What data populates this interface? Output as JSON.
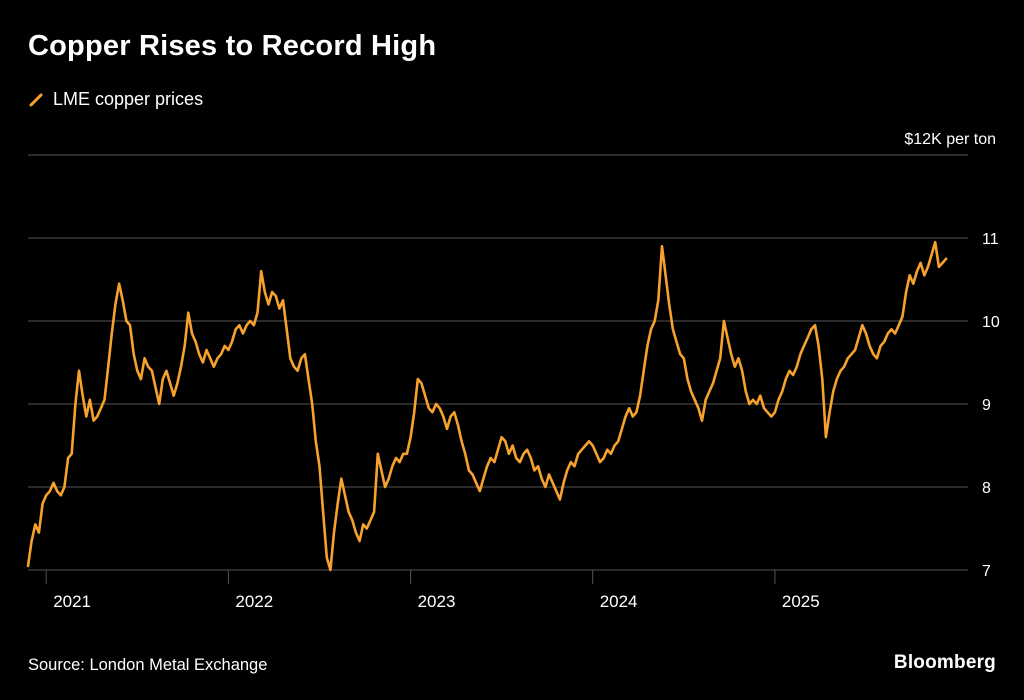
{
  "header": {
    "title": "Copper Rises to Record High",
    "legend_label": "LME copper prices"
  },
  "footer": {
    "source": "Source: London Metal Exchange",
    "brand": "Bloomberg"
  },
  "colors": {
    "background": "#000000",
    "line": "#F7A22C",
    "grid": "#545454",
    "text": "#FFFFFF"
  },
  "chart_data": {
    "type": "line",
    "title": "Copper Rises to Record High",
    "series_name": "LME copper prices",
    "unit": "$K per ton",
    "y_top_label": "$12K per ton",
    "ylim": [
      7,
      12
    ],
    "y_ticks": [
      7,
      8,
      9,
      10,
      11
    ],
    "x_ticks": [
      2021,
      2022,
      2023,
      2024,
      2025
    ],
    "xlim": [
      2020.9,
      2026.06
    ],
    "grid": true,
    "legend_position": "top-left",
    "source": "London Metal Exchange",
    "points": [
      [
        2020.9,
        7.05
      ],
      [
        2020.92,
        7.35
      ],
      [
        2020.94,
        7.55
      ],
      [
        2020.96,
        7.45
      ],
      [
        2020.98,
        7.8
      ],
      [
        2021.0,
        7.9
      ],
      [
        2021.02,
        7.95
      ],
      [
        2021.04,
        8.05
      ],
      [
        2021.06,
        7.95
      ],
      [
        2021.08,
        7.9
      ],
      [
        2021.1,
        8.0
      ],
      [
        2021.12,
        8.35
      ],
      [
        2021.14,
        8.4
      ],
      [
        2021.16,
        9.0
      ],
      [
        2021.18,
        9.4
      ],
      [
        2021.2,
        9.1
      ],
      [
        2021.22,
        8.85
      ],
      [
        2021.24,
        9.05
      ],
      [
        2021.26,
        8.8
      ],
      [
        2021.28,
        8.85
      ],
      [
        2021.3,
        8.95
      ],
      [
        2021.32,
        9.05
      ],
      [
        2021.34,
        9.45
      ],
      [
        2021.36,
        9.85
      ],
      [
        2021.38,
        10.2
      ],
      [
        2021.4,
        10.45
      ],
      [
        2021.42,
        10.25
      ],
      [
        2021.44,
        10.0
      ],
      [
        2021.46,
        9.95
      ],
      [
        2021.48,
        9.6
      ],
      [
        2021.5,
        9.4
      ],
      [
        2021.52,
        9.3
      ],
      [
        2021.54,
        9.55
      ],
      [
        2021.56,
        9.45
      ],
      [
        2021.58,
        9.4
      ],
      [
        2021.6,
        9.2
      ],
      [
        2021.62,
        9.0
      ],
      [
        2021.64,
        9.3
      ],
      [
        2021.66,
        9.4
      ],
      [
        2021.68,
        9.25
      ],
      [
        2021.7,
        9.1
      ],
      [
        2021.72,
        9.25
      ],
      [
        2021.74,
        9.45
      ],
      [
        2021.76,
        9.7
      ],
      [
        2021.78,
        10.1
      ],
      [
        2021.8,
        9.85
      ],
      [
        2021.82,
        9.75
      ],
      [
        2021.84,
        9.6
      ],
      [
        2021.86,
        9.5
      ],
      [
        2021.88,
        9.65
      ],
      [
        2021.9,
        9.55
      ],
      [
        2021.92,
        9.45
      ],
      [
        2021.94,
        9.55
      ],
      [
        2021.96,
        9.6
      ],
      [
        2021.98,
        9.7
      ],
      [
        2022.0,
        9.65
      ],
      [
        2022.02,
        9.75
      ],
      [
        2022.04,
        9.9
      ],
      [
        2022.06,
        9.95
      ],
      [
        2022.08,
        9.85
      ],
      [
        2022.1,
        9.95
      ],
      [
        2022.12,
        10.0
      ],
      [
        2022.14,
        9.95
      ],
      [
        2022.16,
        10.1
      ],
      [
        2022.18,
        10.6
      ],
      [
        2022.2,
        10.35
      ],
      [
        2022.22,
        10.2
      ],
      [
        2022.24,
        10.35
      ],
      [
        2022.26,
        10.3
      ],
      [
        2022.28,
        10.15
      ],
      [
        2022.3,
        10.25
      ],
      [
        2022.32,
        9.9
      ],
      [
        2022.34,
        9.55
      ],
      [
        2022.36,
        9.45
      ],
      [
        2022.38,
        9.4
      ],
      [
        2022.4,
        9.55
      ],
      [
        2022.42,
        9.6
      ],
      [
        2022.44,
        9.3
      ],
      [
        2022.46,
        9.0
      ],
      [
        2022.48,
        8.55
      ],
      [
        2022.5,
        8.25
      ],
      [
        2022.52,
        7.7
      ],
      [
        2022.54,
        7.15
      ],
      [
        2022.56,
        7.0
      ],
      [
        2022.58,
        7.45
      ],
      [
        2022.6,
        7.8
      ],
      [
        2022.62,
        8.1
      ],
      [
        2022.64,
        7.9
      ],
      [
        2022.66,
        7.7
      ],
      [
        2022.68,
        7.6
      ],
      [
        2022.7,
        7.45
      ],
      [
        2022.72,
        7.35
      ],
      [
        2022.74,
        7.55
      ],
      [
        2022.76,
        7.5
      ],
      [
        2022.78,
        7.6
      ],
      [
        2022.8,
        7.7
      ],
      [
        2022.82,
        8.4
      ],
      [
        2022.84,
        8.2
      ],
      [
        2022.86,
        8.0
      ],
      [
        2022.88,
        8.1
      ],
      [
        2022.9,
        8.25
      ],
      [
        2022.92,
        8.35
      ],
      [
        2022.94,
        8.3
      ],
      [
        2022.96,
        8.4
      ],
      [
        2022.98,
        8.4
      ],
      [
        2023.0,
        8.6
      ],
      [
        2023.02,
        8.9
      ],
      [
        2023.04,
        9.3
      ],
      [
        2023.06,
        9.25
      ],
      [
        2023.08,
        9.1
      ],
      [
        2023.1,
        8.95
      ],
      [
        2023.12,
        8.9
      ],
      [
        2023.14,
        9.0
      ],
      [
        2023.16,
        8.95
      ],
      [
        2023.18,
        8.85
      ],
      [
        2023.2,
        8.7
      ],
      [
        2023.22,
        8.85
      ],
      [
        2023.24,
        8.9
      ],
      [
        2023.26,
        8.75
      ],
      [
        2023.28,
        8.55
      ],
      [
        2023.3,
        8.4
      ],
      [
        2023.32,
        8.2
      ],
      [
        2023.34,
        8.15
      ],
      [
        2023.36,
        8.05
      ],
      [
        2023.38,
        7.95
      ],
      [
        2023.4,
        8.1
      ],
      [
        2023.42,
        8.25
      ],
      [
        2023.44,
        8.35
      ],
      [
        2023.46,
        8.3
      ],
      [
        2023.48,
        8.45
      ],
      [
        2023.5,
        8.6
      ],
      [
        2023.52,
        8.55
      ],
      [
        2023.54,
        8.4
      ],
      [
        2023.56,
        8.5
      ],
      [
        2023.58,
        8.35
      ],
      [
        2023.6,
        8.3
      ],
      [
        2023.62,
        8.4
      ],
      [
        2023.64,
        8.45
      ],
      [
        2023.66,
        8.35
      ],
      [
        2023.68,
        8.2
      ],
      [
        2023.7,
        8.25
      ],
      [
        2023.72,
        8.1
      ],
      [
        2023.74,
        8.0
      ],
      [
        2023.76,
        8.15
      ],
      [
        2023.78,
        8.05
      ],
      [
        2023.8,
        7.95
      ],
      [
        2023.82,
        7.85
      ],
      [
        2023.84,
        8.05
      ],
      [
        2023.86,
        8.2
      ],
      [
        2023.88,
        8.3
      ],
      [
        2023.9,
        8.25
      ],
      [
        2023.92,
        8.4
      ],
      [
        2023.94,
        8.45
      ],
      [
        2023.96,
        8.5
      ],
      [
        2023.98,
        8.55
      ],
      [
        2024.0,
        8.5
      ],
      [
        2024.02,
        8.4
      ],
      [
        2024.04,
        8.3
      ],
      [
        2024.06,
        8.35
      ],
      [
        2024.08,
        8.45
      ],
      [
        2024.1,
        8.4
      ],
      [
        2024.12,
        8.5
      ],
      [
        2024.14,
        8.55
      ],
      [
        2024.16,
        8.7
      ],
      [
        2024.18,
        8.85
      ],
      [
        2024.2,
        8.95
      ],
      [
        2024.22,
        8.85
      ],
      [
        2024.24,
        8.9
      ],
      [
        2024.26,
        9.1
      ],
      [
        2024.28,
        9.4
      ],
      [
        2024.3,
        9.7
      ],
      [
        2024.32,
        9.9
      ],
      [
        2024.34,
        10.0
      ],
      [
        2024.36,
        10.25
      ],
      [
        2024.38,
        10.9
      ],
      [
        2024.4,
        10.55
      ],
      [
        2024.42,
        10.2
      ],
      [
        2024.44,
        9.9
      ],
      [
        2024.46,
        9.75
      ],
      [
        2024.48,
        9.6
      ],
      [
        2024.5,
        9.55
      ],
      [
        2024.52,
        9.3
      ],
      [
        2024.54,
        9.15
      ],
      [
        2024.56,
        9.05
      ],
      [
        2024.58,
        8.95
      ],
      [
        2024.6,
        8.8
      ],
      [
        2024.62,
        9.05
      ],
      [
        2024.64,
        9.15
      ],
      [
        2024.66,
        9.25
      ],
      [
        2024.68,
        9.4
      ],
      [
        2024.7,
        9.55
      ],
      [
        2024.72,
        10.0
      ],
      [
        2024.74,
        9.8
      ],
      [
        2024.76,
        9.6
      ],
      [
        2024.78,
        9.45
      ],
      [
        2024.8,
        9.55
      ],
      [
        2024.82,
        9.4
      ],
      [
        2024.84,
        9.15
      ],
      [
        2024.86,
        9.0
      ],
      [
        2024.88,
        9.05
      ],
      [
        2024.9,
        9.0
      ],
      [
        2024.92,
        9.1
      ],
      [
        2024.94,
        8.95
      ],
      [
        2024.96,
        8.9
      ],
      [
        2024.98,
        8.85
      ],
      [
        2025.0,
        8.9
      ],
      [
        2025.02,
        9.05
      ],
      [
        2025.04,
        9.15
      ],
      [
        2025.06,
        9.3
      ],
      [
        2025.08,
        9.4
      ],
      [
        2025.1,
        9.35
      ],
      [
        2025.12,
        9.45
      ],
      [
        2025.14,
        9.6
      ],
      [
        2025.16,
        9.7
      ],
      [
        2025.18,
        9.8
      ],
      [
        2025.2,
        9.9
      ],
      [
        2025.22,
        9.95
      ],
      [
        2025.24,
        9.7
      ],
      [
        2025.26,
        9.3
      ],
      [
        2025.28,
        8.6
      ],
      [
        2025.3,
        8.9
      ],
      [
        2025.32,
        9.15
      ],
      [
        2025.34,
        9.3
      ],
      [
        2025.36,
        9.4
      ],
      [
        2025.38,
        9.45
      ],
      [
        2025.4,
        9.55
      ],
      [
        2025.42,
        9.6
      ],
      [
        2025.44,
        9.65
      ],
      [
        2025.46,
        9.8
      ],
      [
        2025.48,
        9.95
      ],
      [
        2025.5,
        9.85
      ],
      [
        2025.52,
        9.7
      ],
      [
        2025.54,
        9.6
      ],
      [
        2025.56,
        9.55
      ],
      [
        2025.58,
        9.7
      ],
      [
        2025.6,
        9.75
      ],
      [
        2025.62,
        9.85
      ],
      [
        2025.64,
        9.9
      ],
      [
        2025.66,
        9.85
      ],
      [
        2025.68,
        9.95
      ],
      [
        2025.7,
        10.05
      ],
      [
        2025.72,
        10.35
      ],
      [
        2025.74,
        10.55
      ],
      [
        2025.76,
        10.45
      ],
      [
        2025.78,
        10.6
      ],
      [
        2025.8,
        10.7
      ],
      [
        2025.82,
        10.55
      ],
      [
        2025.84,
        10.65
      ],
      [
        2025.86,
        10.8
      ],
      [
        2025.88,
        10.95
      ],
      [
        2025.9,
        10.65
      ],
      [
        2025.92,
        10.7
      ],
      [
        2025.94,
        10.75
      ]
    ]
  }
}
